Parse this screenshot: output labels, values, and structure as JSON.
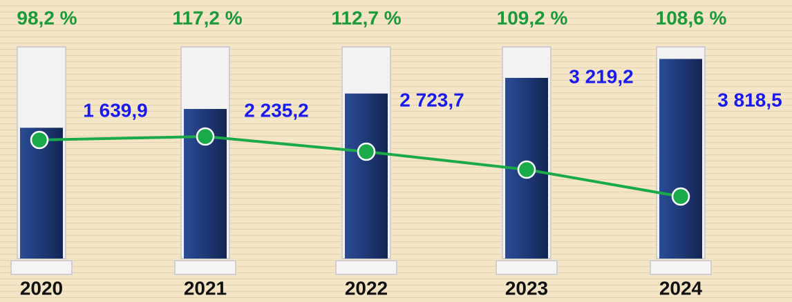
{
  "chart_data": {
    "type": "bar",
    "categories": [
      "2020",
      "2021",
      "2022",
      "2023",
      "2024"
    ],
    "series": [
      {
        "color": "#1e3a7a",
        "values": [
          1639.9,
          2235.2,
          2723.7,
          3219.2,
          3818.5
        ],
        "value_labels": [
          "1 639,9",
          "2 235,2",
          "2 723,7",
          "3 219,2",
          "3 818,5"
        ]
      },
      {
        "color": "#1a9a3a",
        "values": [
          98.2,
          117.2,
          112.7,
          109.2,
          108.6
        ],
        "value_labels": [
          "98,2 %",
          "117,2 %",
          "112,7 %",
          "109,2 %",
          "108,6 %"
        ]
      }
    ],
    "ylim": [
      -2500,
      4200
    ]
  }
}
